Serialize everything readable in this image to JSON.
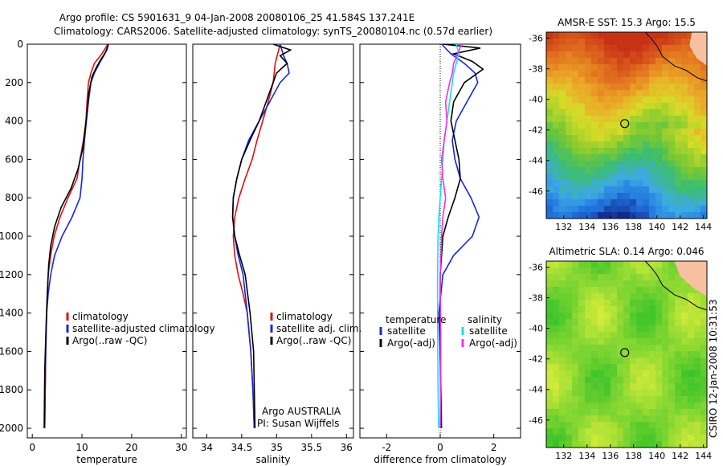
{
  "header": {
    "line1": "Argo profile: CS 5901631_9 04-Jan-2008 20080106_25 41.584S 137.241E",
    "line2": "Climatology: CARS2006. Satellite-adjusted climatology: synTS_20080104.nc (0.57d earlier)"
  },
  "side_label": "CSIRO 12-Jan-2008 10:31:53",
  "colors": {
    "climatology": "#e01010",
    "satellite": "#1428e0",
    "argo": "#000000",
    "argo_salinity_diff": "#f030f0",
    "satellite_salinity_diff": "#10e0f0",
    "land": "#f8c0a0",
    "marker": "#000000"
  },
  "chart_data": [
    {
      "type": "line",
      "id": "temperature",
      "xlabel": "temperature",
      "ylabel": "",
      "xlim": [
        -1,
        31
      ],
      "ylim": [
        2050,
        0
      ],
      "xticks": [
        0,
        10,
        20,
        30
      ],
      "yticks": [
        0,
        200,
        400,
        600,
        800,
        1000,
        1200,
        1400,
        1600,
        1800,
        2000
      ],
      "series": [
        {
          "name": "climatology",
          "color": "#e01010",
          "x": [
            15.2,
            14.0,
            12.5,
            11.8,
            11.3,
            11.0,
            10.8,
            10.3,
            9.6,
            9.0,
            7.2,
            5.6,
            4.4,
            3.7,
            3.2,
            2.9,
            2.7,
            2.5
          ],
          "y": [
            0,
            50,
            100,
            150,
            200,
            300,
            400,
            500,
            600,
            700,
            800,
            900,
            1000,
            1100,
            1200,
            1400,
            1600,
            2000
          ]
        },
        {
          "name": "satellite-adjusted climatology",
          "color": "#1428e0",
          "x": [
            15.3,
            14.6,
            13.5,
            12.5,
            11.8,
            11.3,
            10.9,
            10.5,
            10.2,
            10.0,
            9.6,
            8.0,
            6.0,
            4.5,
            3.7,
            3.2,
            2.9,
            2.7,
            2.5
          ],
          "y": [
            0,
            50,
            100,
            150,
            200,
            300,
            400,
            500,
            600,
            700,
            800,
            900,
            1000,
            1100,
            1200,
            1300,
            1400,
            1600,
            2000
          ]
        },
        {
          "name": "Argo(..raw -QC)",
          "color": "#000000",
          "x": [
            15.3,
            15.0,
            13.8,
            12.9,
            12.0,
            11.4,
            11.0,
            10.6,
            10.1,
            9.2,
            7.8,
            5.8,
            4.5,
            3.7,
            3.3,
            3.0,
            2.8,
            2.5,
            2.4
          ],
          "y": [
            0,
            30,
            80,
            120,
            170,
            250,
            350,
            450,
            550,
            650,
            750,
            850,
            950,
            1050,
            1150,
            1300,
            1450,
            1700,
            2000
          ]
        }
      ],
      "legend": {
        "placement": "lower-right",
        "entries": [
          "climatology",
          "satellite-adjusted climatology",
          "Argo(..raw -QC)"
        ]
      }
    },
    {
      "type": "line",
      "id": "salinity",
      "xlabel": "salinity",
      "xlim": [
        33.8,
        36.1
      ],
      "ylim": [
        2050,
        0
      ],
      "xticks": [
        34,
        34.5,
        35,
        35.5,
        36
      ],
      "series": [
        {
          "name": "climatology",
          "color": "#e01010",
          "x": [
            35.05,
            34.98,
            34.95,
            34.88,
            34.8,
            34.72,
            34.65,
            34.55,
            34.46,
            34.4,
            34.38,
            34.4,
            34.45,
            34.52,
            34.58,
            34.63,
            34.66,
            34.68
          ],
          "y": [
            0,
            100,
            200,
            300,
            400,
            500,
            600,
            700,
            800,
            900,
            1000,
            1100,
            1200,
            1300,
            1400,
            1600,
            1800,
            2000
          ]
        },
        {
          "name": "satellite adj. clim.",
          "color": "#1428e0",
          "x": [
            35.05,
            35.1,
            35.15,
            35.18,
            35.05,
            34.9,
            34.75,
            34.6,
            34.5,
            34.43,
            34.38,
            34.37,
            34.4,
            34.45,
            34.52,
            34.58,
            34.63,
            34.66,
            34.68
          ],
          "y": [
            0,
            60,
            100,
            150,
            200,
            300,
            400,
            500,
            600,
            700,
            800,
            900,
            1000,
            1100,
            1200,
            1400,
            1600,
            1800,
            2000
          ]
        },
        {
          "name": "Argo(..raw -QC)",
          "color": "#000000",
          "x": [
            34.95,
            35.2,
            35.05,
            35.15,
            35.0,
            34.95,
            34.85,
            34.75,
            34.62,
            34.5,
            34.43,
            34.38,
            34.37,
            34.4,
            34.47,
            34.55,
            34.62,
            34.67,
            34.69
          ],
          "y": [
            0,
            30,
            60,
            100,
            150,
            200,
            300,
            400,
            500,
            600,
            700,
            800,
            900,
            1000,
            1100,
            1200,
            1400,
            1600,
            2000
          ]
        }
      ],
      "legend": {
        "placement": "lower-right",
        "entries": [
          "climatology",
          "satellite adj. clim.",
          "Argo(..raw -QC)"
        ]
      },
      "annotations": [
        "Argo AUSTRALIA",
        "PI: Susan Wijffels"
      ]
    },
    {
      "type": "line",
      "id": "difference",
      "xlabel": "difference from climatology",
      "xlim": [
        -3,
        3
      ],
      "ylim": [
        2050,
        0
      ],
      "xticks": [
        -2,
        0,
        2
      ],
      "series": [
        {
          "name": "temperature satellite",
          "color": "#1428e0",
          "x": [
            0.05,
            0.4,
            0.9,
            1.3,
            1.4,
            1.0,
            0.6,
            0.45,
            0.55,
            0.75,
            1.15,
            1.45,
            1.2,
            0.5,
            0.1,
            -0.05,
            0.0,
            0.05
          ],
          "y": [
            0,
            50,
            100,
            150,
            200,
            300,
            400,
            500,
            600,
            700,
            800,
            900,
            1000,
            1100,
            1200,
            1400,
            1600,
            2000
          ]
        },
        {
          "name": "temperature Argo(-adj)",
          "color": "#000000",
          "x": [
            0.1,
            1.5,
            0.5,
            1.2,
            1.6,
            0.9,
            0.5,
            0.4,
            0.55,
            0.7,
            0.75,
            0.55,
            0.3,
            0.1,
            0.0,
            0.0,
            0.02
          ],
          "y": [
            0,
            20,
            50,
            90,
            130,
            200,
            300,
            400,
            500,
            600,
            700,
            800,
            900,
            1000,
            1200,
            1600,
            2000
          ]
        },
        {
          "name": "salinity satellite",
          "color": "#10e0f0",
          "x": [
            0.6,
            0.7,
            0.6,
            0.5,
            0.45,
            0.35,
            0.25,
            0.15,
            0.1,
            0.05,
            0.0,
            -0.05,
            -0.08,
            -0.1,
            -0.1,
            -0.08,
            -0.06
          ],
          "y": [
            0,
            50,
            100,
            150,
            200,
            300,
            400,
            500,
            600,
            700,
            800,
            900,
            1000,
            1200,
            1400,
            1800,
            2000
          ]
        },
        {
          "name": "salinity Argo(-adj)",
          "color": "#f030f0",
          "x": [
            0.8,
            0.65,
            0.5,
            0.45,
            0.35,
            0.2,
            0.25,
            0.15,
            0.05,
            0.1,
            0.2,
            0.1,
            0.05,
            0.0,
            0.02,
            0.0
          ],
          "y": [
            0,
            50,
            100,
            150,
            200,
            300,
            400,
            500,
            600,
            700,
            800,
            900,
            1000,
            1200,
            1600,
            2000
          ]
        }
      ],
      "legend": {
        "placement": "lower-center",
        "headers": [
          "temperature",
          "salinity"
        ],
        "entries": [
          "satellite",
          "Argo(-adj)",
          "satellite",
          "Argo(-adj)"
        ]
      }
    },
    {
      "type": "heatmap",
      "id": "sst-map",
      "title": "AMSR-E SST: 15.3 Argo: 15.5",
      "xlim": [
        130.5,
        144.3
      ],
      "ylim": [
        -47.8,
        -35.6
      ],
      "xticks": [
        132,
        134,
        136,
        138,
        140,
        142,
        144
      ],
      "yticks": [
        -36,
        -38,
        -40,
        -42,
        -44,
        -46
      ],
      "argo_position": {
        "lon": 137.241,
        "lat": -41.584
      },
      "coast": [
        [
          139.0,
          -35.6
        ],
        [
          139.5,
          -36.0
        ],
        [
          140.0,
          -36.5
        ],
        [
          140.5,
          -37.2
        ],
        [
          141.5,
          -37.8
        ],
        [
          142.5,
          -38.1
        ],
        [
          143.5,
          -38.6
        ],
        [
          144.3,
          -38.8
        ]
      ],
      "land_patches": [
        [
          [
            143.0,
            -35.6
          ],
          [
            144.3,
            -35.6
          ],
          [
            144.3,
            -37.8
          ],
          [
            143.4,
            -37.3
          ],
          [
            142.8,
            -36.5
          ]
        ]
      ]
    },
    {
      "type": "heatmap",
      "id": "sla-map",
      "title": "Altimetric SLA: 0.14 Argo: 0.046",
      "xlim": [
        130.5,
        144.3
      ],
      "ylim": [
        -47.8,
        -35.6
      ],
      "xticks": [
        132,
        134,
        136,
        138,
        140,
        142,
        144
      ],
      "yticks": [
        -36,
        -38,
        -40,
        -42,
        -44,
        -46
      ],
      "argo_position": {
        "lon": 137.241,
        "lat": -41.584
      },
      "coast": [
        [
          139.0,
          -35.6
        ],
        [
          139.5,
          -36.0
        ],
        [
          140.0,
          -36.5
        ],
        [
          140.5,
          -37.2
        ],
        [
          141.5,
          -37.8
        ],
        [
          142.5,
          -38.1
        ],
        [
          143.5,
          -38.6
        ],
        [
          144.3,
          -38.8
        ]
      ],
      "land_patches": [
        [
          [
            141.5,
            -35.6
          ],
          [
            144.3,
            -35.6
          ],
          [
            144.3,
            -37.9
          ],
          [
            143.2,
            -37.4
          ],
          [
            142.0,
            -36.6
          ]
        ]
      ]
    }
  ]
}
